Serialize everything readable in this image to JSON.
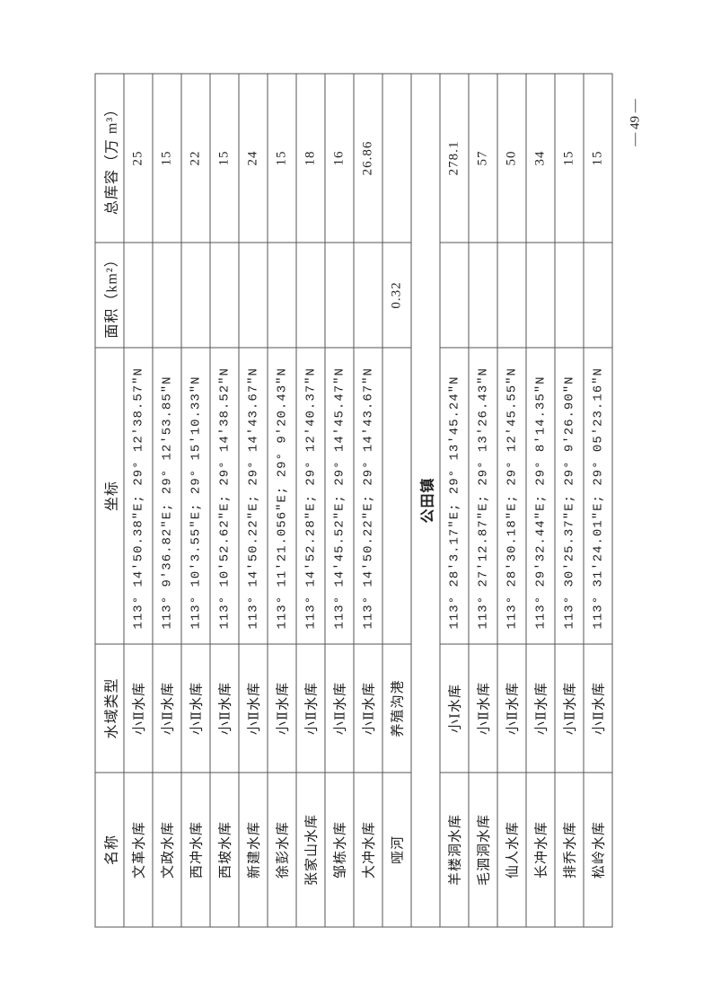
{
  "headers": {
    "name": "名称",
    "type": "水域类型",
    "coord": "坐标",
    "area": "面积（km²）",
    "capacity": "总库容（万 m³）"
  },
  "rows_a": [
    {
      "name": "文革水库",
      "type": "小Ⅱ水库",
      "coord": "113° 14′50.38\"E; 29° 12′38.57\"N",
      "area": "",
      "capacity": "25"
    },
    {
      "name": "文政水库",
      "type": "小Ⅱ水库",
      "coord": "113° 9′36.82\"E; 29° 12′53.85\"N",
      "area": "",
      "capacity": "15"
    },
    {
      "name": "西冲水库",
      "type": "小Ⅱ水库",
      "coord": "113° 10′3.55\"E;  29° 15′10.33\"N",
      "area": "",
      "capacity": "22"
    },
    {
      "name": "西坡水库",
      "type": "小Ⅱ水库",
      "coord": "113° 10′52.62\"E; 29° 14′38.52\"N",
      "area": "",
      "capacity": "15"
    },
    {
      "name": "新建水库",
      "type": "小Ⅱ水库",
      "coord": "113° 14′50.22\"E; 29° 14′43.67\"N",
      "area": "",
      "capacity": "24"
    },
    {
      "name": "徐彭水库",
      "type": "小Ⅱ水库",
      "coord": "113° 11′21.056\"E; 29° 9′20.43\"N",
      "area": "",
      "capacity": "15"
    },
    {
      "name": "张家山水库",
      "type": "小Ⅱ水库",
      "coord": "113° 14′52.28\"E; 29° 12′40.37\"N",
      "area": "",
      "capacity": "18"
    },
    {
      "name": "邹栋水库",
      "type": "小Ⅱ水库",
      "coord": "113° 14′45.52\"E; 29° 14′45.47\"N",
      "area": "",
      "capacity": "16"
    },
    {
      "name": "大冲水库",
      "type": "小Ⅱ水库",
      "coord": "113° 14′50.22\"E; 29° 14′43.67\"N",
      "area": "",
      "capacity": "26.86"
    },
    {
      "name": "哑河",
      "type": "养殖沟港",
      "coord": "",
      "area": "0.32",
      "capacity": ""
    }
  ],
  "section_title": "公田镇",
  "rows_b": [
    {
      "name": "羊楼洞水库",
      "type": "小Ⅰ水库",
      "coord": "113° 28′3.17\"E; 29° 13′45.24\"N",
      "area": "",
      "capacity": "278.1"
    },
    {
      "name": "毛泗洞水库",
      "type": "小Ⅱ水库",
      "coord": "113° 27′12.87\"E; 29° 13′26.43\"N",
      "area": "",
      "capacity": "57"
    },
    {
      "name": "仙人水库",
      "type": "小Ⅱ水库",
      "coord": "113° 28′30.18\"E; 29° 12′45.55\"N",
      "area": "",
      "capacity": "50"
    },
    {
      "name": "长冲水库",
      "type": "小Ⅱ水库",
      "coord": "113° 29′32.44\"E; 29° 8′14.35\"N",
      "area": "",
      "capacity": "34"
    },
    {
      "name": "排乔水库",
      "type": "小Ⅱ水库",
      "coord": "113° 30′25.37\"E; 29° 9′26.90\"N",
      "area": "",
      "capacity": "15"
    },
    {
      "name": "松岭水库",
      "type": "小Ⅱ水库",
      "coord": "113° 31′24.01\"E; 29° 05′23.16\"N",
      "area": "",
      "capacity": "15"
    }
  ],
  "page_number": "— 49 —"
}
